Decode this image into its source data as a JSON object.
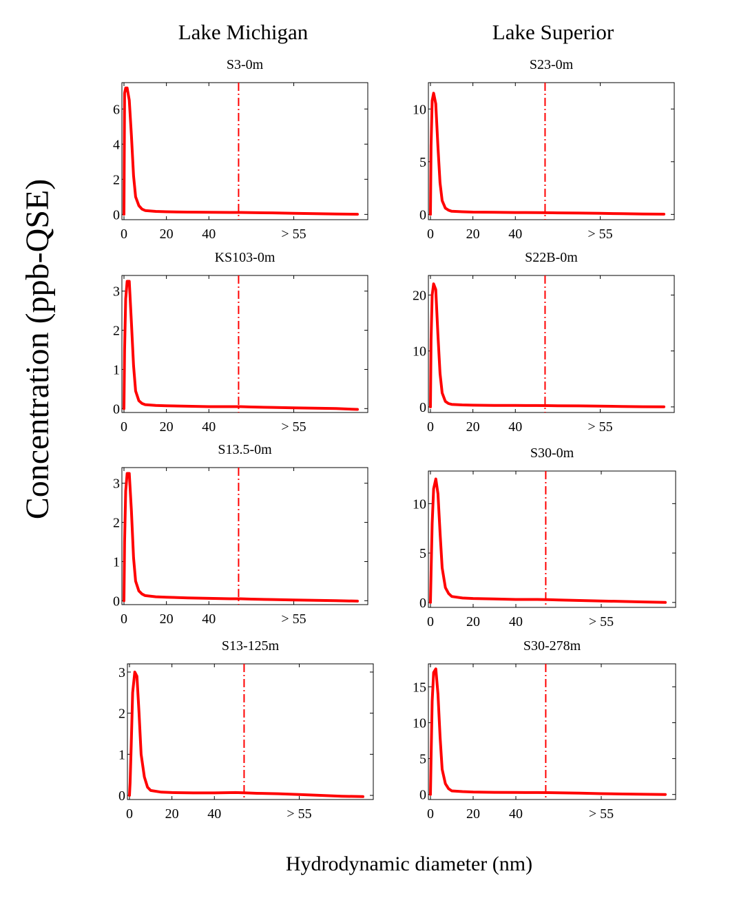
{
  "figure": {
    "ylabel": "Concentration (ppb-QSE)",
    "xlabel": "Hydrodynamic diameter (nm)",
    "column_titles": [
      "Lake Michigan",
      "Lake Superior"
    ],
    "line_color": "#ff0000",
    "axis_color": "#000000"
  },
  "chart_data": [
    {
      "type": "line",
      "title": "S3-0m",
      "column": "Lake Michigan",
      "xlim": [
        0,
        110
      ],
      "ylim": [
        -0.3,
        7.5
      ],
      "xticks": [
        "0",
        "20",
        "40",
        "> 55"
      ],
      "yticks": [
        "0",
        "2",
        "4",
        "6"
      ],
      "x_tick_values": [
        0,
        20,
        40,
        80
      ],
      "y_tick_values": [
        0,
        2,
        4,
        6
      ],
      "cutoff_x": 54,
      "series": [
        {
          "x": [
            0,
            0.3,
            0.8,
            1.5,
            2.5,
            3.5,
            4.5,
            5.5,
            7,
            8.5,
            10,
            15,
            20,
            30,
            40,
            50,
            55,
            60,
            70,
            80,
            90,
            100,
            110
          ],
          "y": [
            0,
            6.9,
            7.2,
            7.2,
            6.5,
            4.5,
            2.2,
            1,
            0.5,
            0.3,
            0.22,
            0.17,
            0.15,
            0.13,
            0.12,
            0.11,
            0.11,
            0.1,
            0.09,
            0.06,
            0.04,
            0.02,
            0.01
          ]
        }
      ]
    },
    {
      "type": "line",
      "title": "S23-0m",
      "column": "Lake Superior",
      "xlim": [
        0,
        110
      ],
      "ylim": [
        -0.5,
        12.5
      ],
      "xticks": [
        "0",
        "20",
        "40",
        "> 55"
      ],
      "yticks": [
        "0",
        "5",
        "10"
      ],
      "x_tick_values": [
        0,
        20,
        40,
        80
      ],
      "y_tick_values": [
        0,
        5,
        10
      ],
      "cutoff_x": 54,
      "series": [
        {
          "x": [
            0,
            0.3,
            0.8,
            1.5,
            2.5,
            3.5,
            4.5,
            5.5,
            7,
            8.5,
            10,
            15,
            20,
            30,
            40,
            50,
            55,
            60,
            70,
            80,
            90,
            100,
            110
          ],
          "y": [
            0,
            6.5,
            10.8,
            11.5,
            10.5,
            6.5,
            3,
            1.3,
            0.6,
            0.4,
            0.3,
            0.25,
            0.22,
            0.2,
            0.18,
            0.17,
            0.16,
            0.15,
            0.13,
            0.1,
            0.07,
            0.04,
            0.02
          ]
        }
      ]
    },
    {
      "type": "line",
      "title": "KS103-0m",
      "column": "Lake Michigan",
      "xlim": [
        0,
        110
      ],
      "ylim": [
        -0.1,
        3.4
      ],
      "xticks": [
        "0",
        "20",
        "40",
        "> 55"
      ],
      "yticks": [
        "0",
        "1",
        "2",
        "3"
      ],
      "x_tick_values": [
        0,
        20,
        40,
        80
      ],
      "y_tick_values": [
        0,
        1,
        2,
        3
      ],
      "cutoff_x": 54,
      "series": [
        {
          "x": [
            0,
            0.3,
            0.8,
            1.5,
            2.5,
            3.5,
            4.5,
            5.5,
            7,
            8.5,
            10,
            15,
            20,
            30,
            40,
            50,
            55,
            60,
            70,
            80,
            90,
            100,
            110
          ],
          "y": [
            0,
            1.5,
            2.8,
            3.25,
            3.25,
            2.2,
            1.1,
            0.45,
            0.2,
            0.13,
            0.1,
            0.08,
            0.07,
            0.06,
            0.05,
            0.05,
            0.05,
            0.04,
            0.03,
            0.02,
            0.01,
            0.0,
            -0.02
          ]
        }
      ]
    },
    {
      "type": "line",
      "title": "S22B-0m",
      "column": "Lake Superior",
      "xlim": [
        0,
        110
      ],
      "ylim": [
        -1,
        23.5
      ],
      "xticks": [
        "0",
        "20",
        "40",
        "> 55"
      ],
      "yticks": [
        "0",
        "10",
        "20"
      ],
      "x_tick_values": [
        0,
        20,
        40,
        80
      ],
      "y_tick_values": [
        0,
        10,
        20
      ],
      "cutoff_x": 54,
      "series": [
        {
          "x": [
            0,
            0.3,
            0.8,
            1.5,
            2.5,
            3.5,
            4.5,
            5.5,
            7,
            8.5,
            10,
            15,
            20,
            30,
            40,
            50,
            55,
            60,
            70,
            80,
            90,
            100,
            110
          ],
          "y": [
            0,
            12,
            20,
            22,
            21,
            13,
            6,
            2.5,
            1,
            0.6,
            0.45,
            0.35,
            0.3,
            0.27,
            0.25,
            0.24,
            0.23,
            0.21,
            0.18,
            0.13,
            0.08,
            0.04,
            0.02
          ]
        }
      ]
    },
    {
      "type": "line",
      "title": "S13.5-0m",
      "column": "Lake Michigan",
      "xlim": [
        0,
        110
      ],
      "ylim": [
        -0.1,
        3.4
      ],
      "xticks": [
        "0",
        "20",
        "40",
        "> 55"
      ],
      "yticks": [
        "0",
        "1",
        "2",
        "3"
      ],
      "x_tick_values": [
        0,
        20,
        40,
        80
      ],
      "y_tick_values": [
        0,
        1,
        2,
        3
      ],
      "cutoff_x": 54,
      "series": [
        {
          "x": [
            0,
            0.3,
            0.8,
            1.5,
            2.5,
            3.5,
            4.5,
            5.5,
            7,
            8.5,
            10,
            15,
            20,
            30,
            40,
            50,
            55,
            60,
            70,
            80,
            90,
            100,
            110
          ],
          "y": [
            0,
            1.5,
            2.8,
            3.25,
            3.25,
            2.3,
            1.1,
            0.5,
            0.25,
            0.17,
            0.13,
            0.1,
            0.09,
            0.07,
            0.06,
            0.05,
            0.05,
            0.04,
            0.03,
            0.02,
            0.01,
            0.0,
            -0.01
          ]
        }
      ]
    },
    {
      "type": "line",
      "title": "S30-0m",
      "column": "Lake Superior",
      "xlim": [
        0,
        110
      ],
      "ylim": [
        -0.5,
        13.3
      ],
      "xticks": [
        "0",
        "20",
        "40",
        "> 55"
      ],
      "yticks": [
        "0",
        "5",
        "10"
      ],
      "x_tick_values": [
        0,
        20,
        40,
        80
      ],
      "y_tick_values": [
        0,
        5,
        10
      ],
      "cutoff_x": 54,
      "series": [
        {
          "x": [
            0,
            0.3,
            0.8,
            1.5,
            2.5,
            3.5,
            4.5,
            5.5,
            7,
            8.5,
            10,
            15,
            20,
            30,
            40,
            50,
            55,
            60,
            70,
            80,
            90,
            100,
            110
          ],
          "y": [
            0,
            3,
            8,
            11.5,
            12.5,
            11,
            7,
            3.5,
            1.5,
            0.9,
            0.6,
            0.45,
            0.4,
            0.35,
            0.3,
            0.3,
            0.28,
            0.25,
            0.2,
            0.15,
            0.1,
            0.05,
            0.0
          ]
        }
      ]
    },
    {
      "type": "line",
      "title": "S13-125m",
      "column": "Lake Michigan",
      "xlim": [
        0,
        110
      ],
      "ylim": [
        -0.1,
        3.2
      ],
      "xticks": [
        "0",
        "20",
        "40",
        "> 55"
      ],
      "yticks": [
        "0",
        "1",
        "2",
        "3"
      ],
      "x_tick_values": [
        0,
        20,
        40,
        80
      ],
      "y_tick_values": [
        0,
        1,
        2,
        3
      ],
      "cutoff_x": 54,
      "series": [
        {
          "x": [
            0,
            0.3,
            0.8,
            1.5,
            2.5,
            3.5,
            4.5,
            5.5,
            7,
            8.5,
            10,
            15,
            20,
            30,
            40,
            50,
            55,
            60,
            70,
            80,
            90,
            100,
            110
          ],
          "y": [
            0,
            0.3,
            1.2,
            2.5,
            3.0,
            2.9,
            2.0,
            1.0,
            0.45,
            0.2,
            0.12,
            0.08,
            0.07,
            0.06,
            0.06,
            0.07,
            0.06,
            0.05,
            0.04,
            0.02,
            0.0,
            -0.02,
            -0.03
          ]
        }
      ]
    },
    {
      "type": "line",
      "title": "S30-278m",
      "column": "Lake Superior",
      "xlim": [
        0,
        110
      ],
      "ylim": [
        -0.7,
        18.2
      ],
      "xticks": [
        "0",
        "20",
        "40",
        "> 55"
      ],
      "yticks": [
        "0",
        "5",
        "10",
        "15"
      ],
      "x_tick_values": [
        0,
        20,
        40,
        80
      ],
      "y_tick_values": [
        0,
        5,
        10,
        15
      ],
      "cutoff_x": 54,
      "series": [
        {
          "x": [
            0,
            0.3,
            0.8,
            1.5,
            2.5,
            3.5,
            4.5,
            5.5,
            7,
            8.5,
            10,
            15,
            20,
            30,
            40,
            50,
            55,
            60,
            70,
            80,
            90,
            100,
            110
          ],
          "y": [
            0,
            5,
            13,
            17,
            17.5,
            14,
            8,
            3.5,
            1.5,
            0.8,
            0.5,
            0.4,
            0.35,
            0.3,
            0.28,
            0.27,
            0.26,
            0.23,
            0.18,
            0.12,
            0.07,
            0.03,
            0.0
          ]
        }
      ]
    }
  ]
}
